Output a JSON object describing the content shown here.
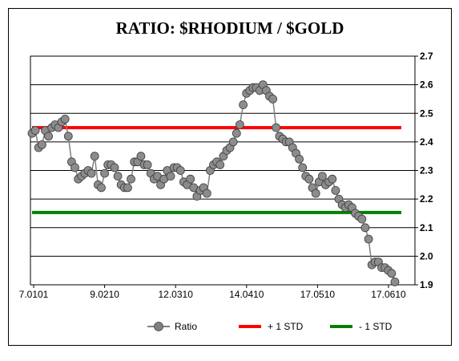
{
  "chart_data": {
    "type": "line",
    "title": "RATIO: $RHODIUM / $GOLD",
    "xlabel": "",
    "ylabel": "",
    "x_tick_labels": [
      "7.0101",
      "9.0210",
      "12.0310",
      "14.0410",
      "17.0510",
      "17.0610"
    ],
    "y_ticks": [
      1.9,
      2.0,
      2.1,
      2.2,
      2.3,
      2.4,
      2.5,
      2.6,
      2.7
    ],
    "y_tick_labels": [
      "1.9",
      "2.0",
      "2.1",
      "2.2",
      "2.3",
      "2.4",
      "2.5",
      "2.6",
      "2.7"
    ],
    "ylim": [
      1.9,
      2.7
    ],
    "grid": "horizontal",
    "y_axis_side": "right",
    "legend_position": "bottom",
    "series": [
      {
        "name": "Ratio",
        "color": "#808080",
        "marker": "circle",
        "values": [
          2.43,
          2.44,
          2.38,
          2.39,
          2.44,
          2.42,
          2.45,
          2.46,
          2.45,
          2.47,
          2.48,
          2.42,
          2.33,
          2.31,
          2.27,
          2.28,
          2.29,
          2.3,
          2.29,
          2.35,
          2.25,
          2.24,
          2.29,
          2.32,
          2.32,
          2.31,
          2.28,
          2.25,
          2.24,
          2.24,
          2.27,
          2.33,
          2.33,
          2.35,
          2.32,
          2.32,
          2.29,
          2.27,
          2.28,
          2.25,
          2.27,
          2.3,
          2.28,
          2.31,
          2.31,
          2.3,
          2.26,
          2.25,
          2.27,
          2.24,
          2.21,
          2.23,
          2.24,
          2.22,
          2.3,
          2.32,
          2.33,
          2.32,
          2.35,
          2.37,
          2.38,
          2.4,
          2.43,
          2.46,
          2.53,
          2.57,
          2.58,
          2.59,
          2.59,
          2.58,
          2.6,
          2.58,
          2.56,
          2.55,
          2.45,
          2.42,
          2.41,
          2.4,
          2.4,
          2.38,
          2.36,
          2.34,
          2.31,
          2.28,
          2.27,
          2.24,
          2.22,
          2.26,
          2.28,
          2.25,
          2.26,
          2.27,
          2.23,
          2.2,
          2.18,
          2.17,
          2.18,
          2.17,
          2.15,
          2.14,
          2.13,
          2.1,
          2.06,
          1.97,
          1.98,
          1.98,
          1.96,
          1.96,
          1.95,
          1.94,
          1.91
        ]
      },
      {
        "name": "+ 1 STD",
        "color": "#ff0000",
        "value": 2.45
      },
      {
        "name": "- 1 STD",
        "color": "#008000",
        "value": 2.153
      }
    ]
  }
}
